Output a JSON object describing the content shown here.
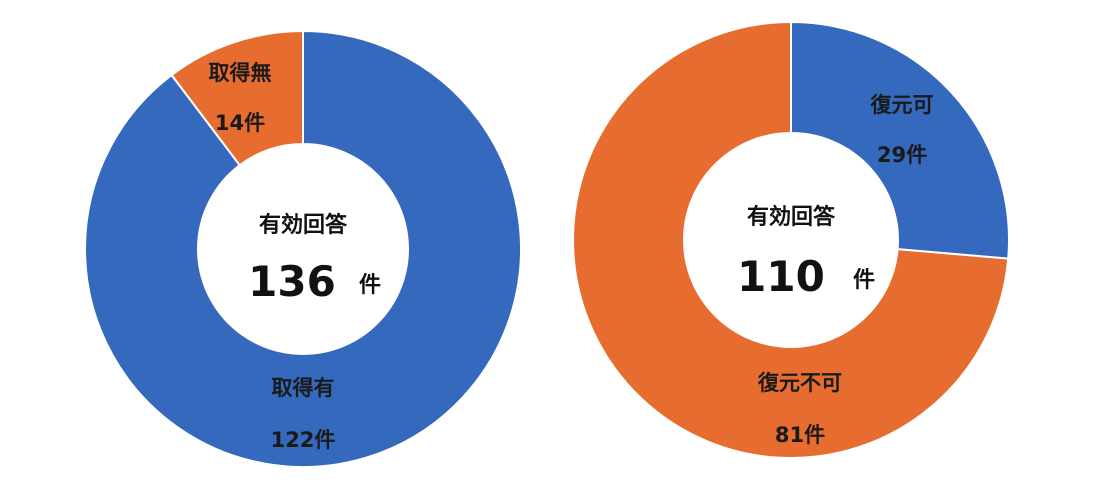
{
  "chart_data": [
    {
      "type": "pie",
      "center_title": "有効回答",
      "center_total": "136",
      "center_unit": "件",
      "slices": [
        {
          "label": "取得有",
          "value": 122,
          "value_label": "122件",
          "color": "#3569BD"
        },
        {
          "label": "取得無",
          "value": 14,
          "value_label": "14件",
          "color": "#E66D2F"
        }
      ]
    },
    {
      "type": "pie",
      "center_title": "有効回答",
      "center_total": "110",
      "center_unit": "件",
      "slices": [
        {
          "label": "復元可",
          "value": 29,
          "value_label": "29件",
          "color": "#3569BD"
        },
        {
          "label": "復元不可",
          "value": 81,
          "value_label": "81件",
          "color": "#E66D2F"
        }
      ]
    }
  ]
}
